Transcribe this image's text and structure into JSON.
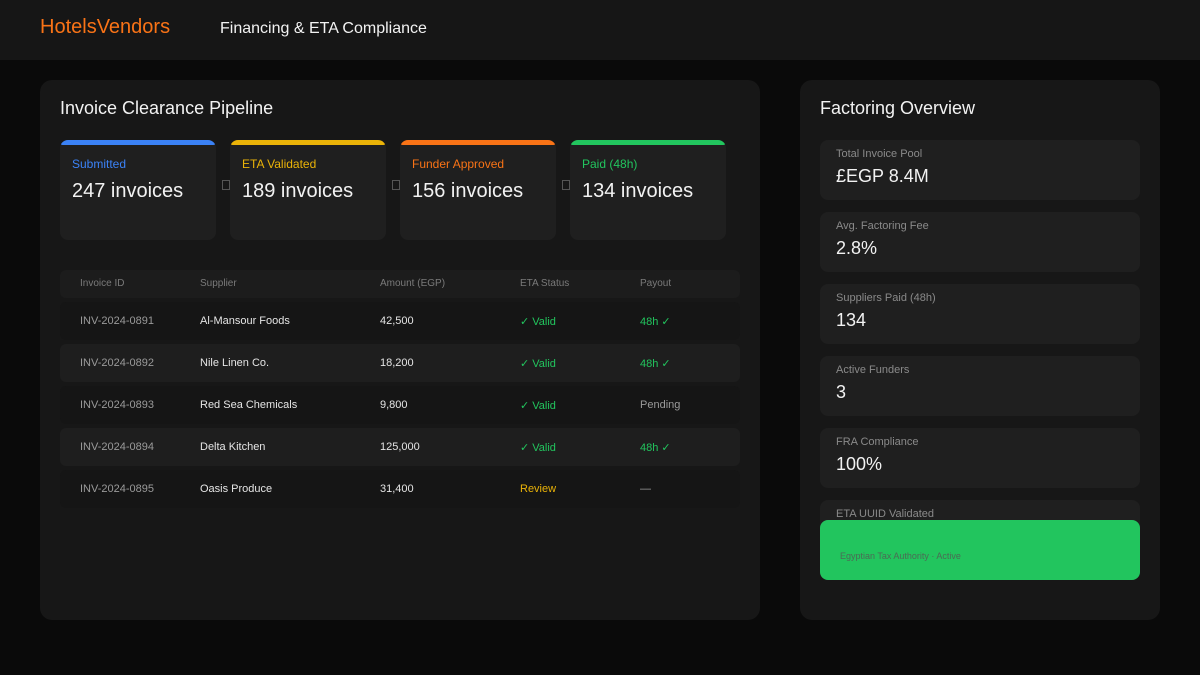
{
  "header": {
    "brand": "HotelsVendors",
    "title": "Financing & ETA Compliance"
  },
  "pipeline": {
    "title": "Invoice Clearance Pipeline",
    "stages": [
      {
        "label": "Submitted",
        "value": "247 invoices"
      },
      {
        "label": "ETA Validated",
        "value": "189 invoices"
      },
      {
        "label": "Funder Approved",
        "value": "156 invoices"
      },
      {
        "label": "Paid (48h)",
        "value": "134 invoices"
      }
    ]
  },
  "table": {
    "columns": [
      "Invoice ID",
      "Supplier",
      "Amount (EGP)",
      "ETA Status",
      "Payout"
    ],
    "rows": [
      [
        "INV-2024-0891",
        "Al-Mansour Foods",
        "42,500",
        "✓ Valid",
        "48h ✓"
      ],
      [
        "INV-2024-0892",
        "Nile Linen Co.",
        "18,200",
        "✓ Valid",
        "48h ✓"
      ],
      [
        "INV-2024-0893",
        "Red Sea Chemicals",
        "9,800",
        "✓ Valid",
        "Pending"
      ],
      [
        "INV-2024-0894",
        "Delta Kitchen",
        "125,000",
        "✓ Valid",
        "48h ✓"
      ],
      [
        "INV-2024-0895",
        "Oasis Produce",
        "31,400",
        "Review",
        "—"
      ]
    ]
  },
  "overview": {
    "title": "Factoring Overview",
    "cards": [
      {
        "label": "Total Invoice Pool",
        "value": "£EGP 8.4M"
      },
      {
        "label": "Avg. Factoring Fee",
        "value": "2.8%"
      },
      {
        "label": "Suppliers Paid (48h)",
        "value": "134"
      },
      {
        "label": "Active Funders",
        "value": "3"
      },
      {
        "label": "FRA Compliance",
        "value": "100%"
      }
    ],
    "eta_card": {
      "label": "ETA UUID Validated",
      "note": "Egyptian Tax Authority · Active"
    }
  }
}
